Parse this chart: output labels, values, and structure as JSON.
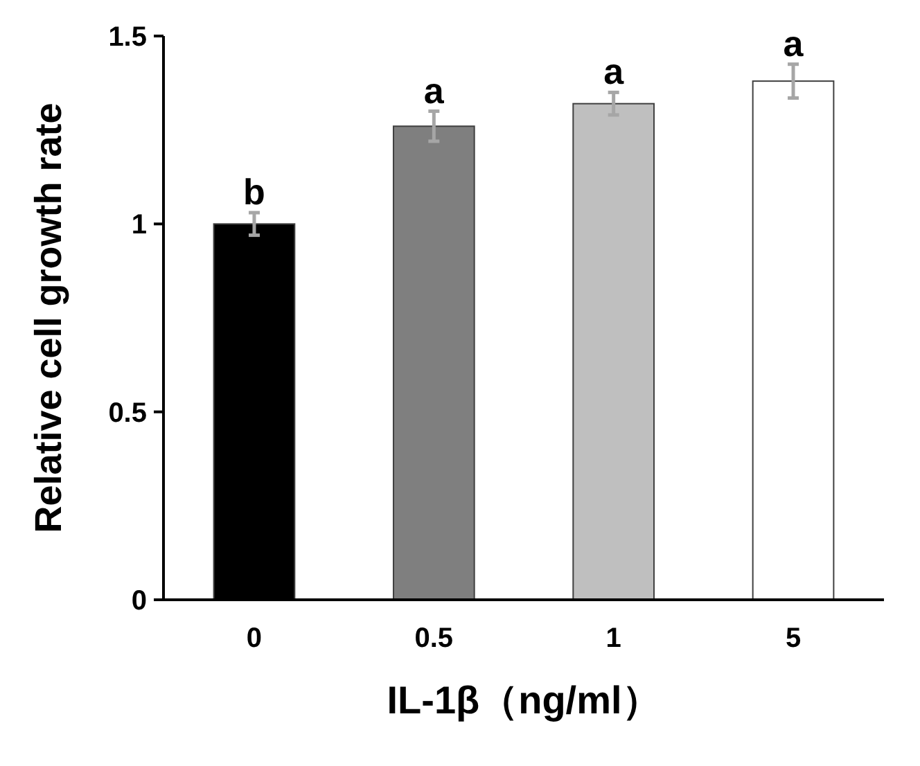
{
  "chart_data": {
    "type": "bar",
    "xlabel": "IL-1β（ng/ml）",
    "ylabel": "Relative cell growth rate",
    "categories": [
      "0",
      "0.5",
      "1",
      "5"
    ],
    "values": [
      1.0,
      1.26,
      1.32,
      1.38
    ],
    "errors": [
      0.03,
      0.04,
      0.03,
      0.045
    ],
    "colors": [
      "#000000",
      "#7f7f7f",
      "#bfbfbf",
      "#ffffff"
    ],
    "ylim": [
      0,
      1.5
    ],
    "yticks": [
      0,
      0.5,
      1,
      1.5
    ],
    "grid": false,
    "annotations": [
      {
        "text": "b",
        "x": "0",
        "y": 1.03
      },
      {
        "text": "a",
        "x": "0.5",
        "y": 1.3
      },
      {
        "text": "a",
        "x": "1",
        "y": 1.35
      },
      {
        "text": "a",
        "x": "5",
        "y": 1.425
      }
    ]
  }
}
